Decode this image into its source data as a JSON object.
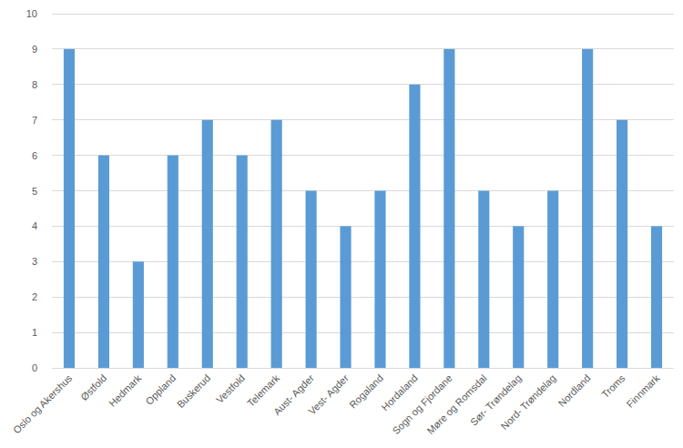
{
  "chart_data": {
    "type": "bar",
    "categories": [
      "Oslo og Akershus",
      "Østfold",
      "Hedmark",
      "Oppland",
      "Buskerud",
      "Vestfold",
      "Telemark",
      "Aust- Agder",
      "Vest- Agder",
      "Rogaland",
      "Hordaland",
      "Sogn og Fjordane",
      "Møre og Romsdal",
      "Sør- Trøndelag",
      "Nord- Trøndelag",
      "Nordland",
      "Troms",
      "Finnmark"
    ],
    "values": [
      9,
      6,
      3,
      6,
      7,
      6,
      7,
      5,
      4,
      5,
      8,
      9,
      5,
      4,
      5,
      9,
      7,
      4
    ],
    "color": "#5b9bd5",
    "ylim": [
      0,
      10
    ],
    "yticks": [
      0,
      1,
      2,
      3,
      4,
      5,
      6,
      7,
      8,
      9,
      10
    ],
    "grid": true
  }
}
